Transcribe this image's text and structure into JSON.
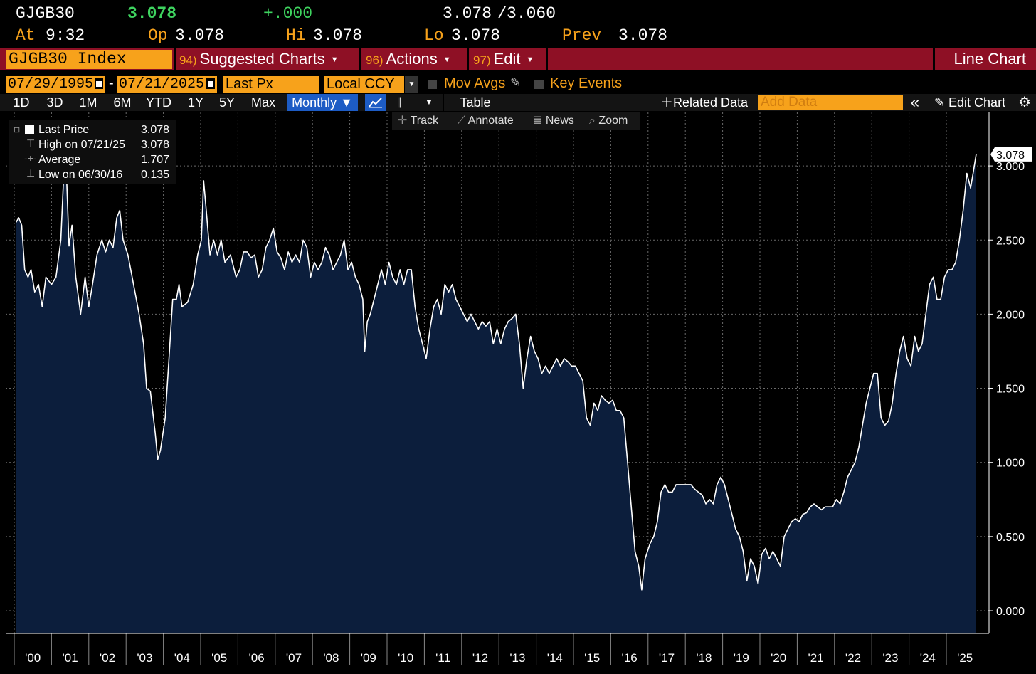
{
  "quote": {
    "ticker": "GJGB30",
    "last": "3.078",
    "change": "+.000",
    "bid": "3.078",
    "ask_sep": "/",
    "ask": "3.060",
    "at_label": "At",
    "at_time": "9:32",
    "open_label": "Op",
    "open": "3.078",
    "high_label": "Hi",
    "high": "3.078",
    "low_label": "Lo",
    "low": "3.078",
    "prev_label": "Prev",
    "prev": "3.078"
  },
  "menu_bar": {
    "security": "GJGB30 Index",
    "suggested": {
      "num": "94)",
      "label": "Suggested Charts"
    },
    "actions": {
      "num": "96)",
      "label": "Actions"
    },
    "edit": {
      "num": "97)",
      "label": "Edit"
    },
    "chart_type": "Line Chart"
  },
  "settings": {
    "start_date": "07/29/1995",
    "date_sep": "-",
    "end_date": "07/21/2025",
    "field": "Last Px",
    "currency": "Local CCY",
    "mov_avgs": "Mov Avgs",
    "key_events": "Key Events"
  },
  "toolbar": {
    "ranges": [
      "1D",
      "3D",
      "1M",
      "6M",
      "YTD",
      "1Y",
      "5Y",
      "Max"
    ],
    "frequency": "Monthly",
    "table": "Table",
    "related": "Related Data",
    "add_data_placeholder": "Add Data",
    "edit_chart": "Edit Chart"
  },
  "subtoolbar": {
    "track": "Track",
    "annotate": "Annotate",
    "news": "News",
    "zoom": "Zoom"
  },
  "legend": {
    "last_label": "Last Price",
    "last_value": "3.078",
    "high_label": "High on 07/21/25",
    "high_value": "3.078",
    "avg_label": "Average",
    "avg_value": "1.707",
    "low_label": "Low on 06/30/16",
    "low_value": "0.135"
  },
  "colors": {
    "accent_orange": "#f7a21b",
    "header_red": "#8e1025",
    "area_fill": "#0c1e3c",
    "line": "#ffffff",
    "active_blue": "#1d5cc5"
  },
  "chart_data": {
    "type": "area",
    "series": [
      {
        "name": "Last Price"
      }
    ],
    "last_label": "3.078",
    "ylim": [
      -0.15,
      3.3
    ],
    "y_ticks": [
      "0.000",
      "0.500",
      "1.000",
      "1.500",
      "2.000",
      "2.500",
      "3.000"
    ],
    "x_ticks": [
      "'00",
      "'01",
      "'02",
      "'03",
      "'04",
      "'05",
      "'06",
      "'07",
      "'08",
      "'09",
      "'10",
      "'11",
      "'12",
      "'13",
      "'14",
      "'15",
      "'16",
      "'17",
      "'18",
      "'19",
      "'20",
      "'21",
      "'22",
      "'23",
      "'24",
      "'25"
    ],
    "grid": true,
    "points": [
      [
        1999.55,
        2.62
      ],
      [
        1999.62,
        2.65
      ],
      [
        1999.7,
        2.6
      ],
      [
        1999.78,
        2.3
      ],
      [
        1999.87,
        2.25
      ],
      [
        1999.95,
        2.3
      ],
      [
        2000.05,
        2.15
      ],
      [
        2000.15,
        2.2
      ],
      [
        2000.25,
        2.05
      ],
      [
        2000.35,
        2.25
      ],
      [
        2000.5,
        2.2
      ],
      [
        2000.62,
        2.25
      ],
      [
        2000.75,
        2.5
      ],
      [
        2000.82,
        2.9
      ],
      [
        2000.9,
        2.95
      ],
      [
        2000.97,
        2.46
      ],
      [
        2001.05,
        2.6
      ],
      [
        2001.15,
        2.25
      ],
      [
        2001.28,
        2.0
      ],
      [
        2001.4,
        2.25
      ],
      [
        2001.5,
        2.05
      ],
      [
        2001.6,
        2.2
      ],
      [
        2001.72,
        2.4
      ],
      [
        2001.85,
        2.5
      ],
      [
        2001.95,
        2.42
      ],
      [
        2002.05,
        2.5
      ],
      [
        2002.15,
        2.45
      ],
      [
        2002.25,
        2.65
      ],
      [
        2002.33,
        2.7
      ],
      [
        2002.42,
        2.5
      ],
      [
        2002.55,
        2.4
      ],
      [
        2002.7,
        2.2
      ],
      [
        2002.85,
        2.0
      ],
      [
        2002.97,
        1.8
      ],
      [
        2003.05,
        1.5
      ],
      [
        2003.15,
        1.48
      ],
      [
        2003.28,
        1.2
      ],
      [
        2003.35,
        1.02
      ],
      [
        2003.42,
        1.08
      ],
      [
        2003.55,
        1.3
      ],
      [
        2003.65,
        1.7
      ],
      [
        2003.75,
        2.1
      ],
      [
        2003.85,
        2.1
      ],
      [
        2003.92,
        2.2
      ],
      [
        2004.0,
        2.05
      ],
      [
        2004.15,
        2.08
      ],
      [
        2004.3,
        2.2
      ],
      [
        2004.42,
        2.4
      ],
      [
        2004.52,
        2.5
      ],
      [
        2004.58,
        2.9
      ],
      [
        2004.65,
        2.7
      ],
      [
        2004.75,
        2.4
      ],
      [
        2004.85,
        2.5
      ],
      [
        2004.95,
        2.4
      ],
      [
        2005.05,
        2.5
      ],
      [
        2005.15,
        2.35
      ],
      [
        2005.3,
        2.4
      ],
      [
        2005.45,
        2.25
      ],
      [
        2005.55,
        2.3
      ],
      [
        2005.65,
        2.42
      ],
      [
        2005.75,
        2.42
      ],
      [
        2005.85,
        2.38
      ],
      [
        2005.95,
        2.4
      ],
      [
        2006.05,
        2.25
      ],
      [
        2006.15,
        2.3
      ],
      [
        2006.25,
        2.45
      ],
      [
        2006.35,
        2.5
      ],
      [
        2006.45,
        2.58
      ],
      [
        2006.55,
        2.42
      ],
      [
        2006.65,
        2.38
      ],
      [
        2006.75,
        2.3
      ],
      [
        2006.85,
        2.42
      ],
      [
        2006.95,
        2.35
      ],
      [
        2007.05,
        2.4
      ],
      [
        2007.15,
        2.35
      ],
      [
        2007.25,
        2.5
      ],
      [
        2007.35,
        2.45
      ],
      [
        2007.45,
        2.25
      ],
      [
        2007.55,
        2.35
      ],
      [
        2007.65,
        2.3
      ],
      [
        2007.75,
        2.35
      ],
      [
        2007.85,
        2.45
      ],
      [
        2007.95,
        2.4
      ],
      [
        2008.05,
        2.3
      ],
      [
        2008.15,
        2.35
      ],
      [
        2008.25,
        2.4
      ],
      [
        2008.35,
        2.5
      ],
      [
        2008.45,
        2.3
      ],
      [
        2008.55,
        2.35
      ],
      [
        2008.65,
        2.25
      ],
      [
        2008.75,
        2.2
      ],
      [
        2008.85,
        2.1
      ],
      [
        2008.9,
        1.75
      ],
      [
        2008.97,
        1.95
      ],
      [
        2009.05,
        2.0
      ],
      [
        2009.15,
        2.1
      ],
      [
        2009.25,
        2.2
      ],
      [
        2009.35,
        2.3
      ],
      [
        2009.45,
        2.2
      ],
      [
        2009.55,
        2.35
      ],
      [
        2009.65,
        2.25
      ],
      [
        2009.75,
        2.2
      ],
      [
        2009.85,
        2.3
      ],
      [
        2009.95,
        2.2
      ],
      [
        2010.05,
        2.3
      ],
      [
        2010.15,
        2.3
      ],
      [
        2010.25,
        2.05
      ],
      [
        2010.35,
        1.9
      ],
      [
        2010.45,
        1.8
      ],
      [
        2010.55,
        1.7
      ],
      [
        2010.65,
        1.9
      ],
      [
        2010.75,
        2.05
      ],
      [
        2010.85,
        2.1
      ],
      [
        2010.95,
        2.0
      ],
      [
        2011.05,
        2.2
      ],
      [
        2011.15,
        2.15
      ],
      [
        2011.25,
        2.2
      ],
      [
        2011.35,
        2.1
      ],
      [
        2011.45,
        2.05
      ],
      [
        2011.55,
        2.0
      ],
      [
        2011.65,
        1.95
      ],
      [
        2011.75,
        2.0
      ],
      [
        2011.85,
        1.95
      ],
      [
        2011.95,
        1.9
      ],
      [
        2012.05,
        1.95
      ],
      [
        2012.15,
        1.92
      ],
      [
        2012.25,
        1.95
      ],
      [
        2012.35,
        1.8
      ],
      [
        2012.45,
        1.9
      ],
      [
        2012.55,
        1.8
      ],
      [
        2012.65,
        1.9
      ],
      [
        2012.75,
        1.95
      ],
      [
        2012.85,
        1.97
      ],
      [
        2012.95,
        2.0
      ],
      [
        2013.05,
        1.8
      ],
      [
        2013.15,
        1.5
      ],
      [
        2013.25,
        1.7
      ],
      [
        2013.35,
        1.85
      ],
      [
        2013.45,
        1.75
      ],
      [
        2013.55,
        1.7
      ],
      [
        2013.65,
        1.6
      ],
      [
        2013.75,
        1.65
      ],
      [
        2013.85,
        1.6
      ],
      [
        2013.95,
        1.65
      ],
      [
        2014.05,
        1.7
      ],
      [
        2014.15,
        1.65
      ],
      [
        2014.25,
        1.7
      ],
      [
        2014.35,
        1.68
      ],
      [
        2014.45,
        1.65
      ],
      [
        2014.55,
        1.65
      ],
      [
        2014.65,
        1.6
      ],
      [
        2014.75,
        1.55
      ],
      [
        2014.85,
        1.3
      ],
      [
        2014.95,
        1.25
      ],
      [
        2015.05,
        1.4
      ],
      [
        2015.15,
        1.35
      ],
      [
        2015.25,
        1.45
      ],
      [
        2015.35,
        1.42
      ],
      [
        2015.45,
        1.4
      ],
      [
        2015.55,
        1.42
      ],
      [
        2015.65,
        1.35
      ],
      [
        2015.75,
        1.35
      ],
      [
        2015.85,
        1.3
      ],
      [
        2015.95,
        1.0
      ],
      [
        2016.05,
        0.7
      ],
      [
        2016.15,
        0.4
      ],
      [
        2016.25,
        0.3
      ],
      [
        2016.33,
        0.14
      ],
      [
        2016.42,
        0.35
      ],
      [
        2016.55,
        0.45
      ],
      [
        2016.65,
        0.5
      ],
      [
        2016.75,
        0.6
      ],
      [
        2016.85,
        0.8
      ],
      [
        2016.95,
        0.85
      ],
      [
        2017.05,
        0.8
      ],
      [
        2017.15,
        0.8
      ],
      [
        2017.25,
        0.85
      ],
      [
        2017.35,
        0.85
      ],
      [
        2017.45,
        0.85
      ],
      [
        2017.55,
        0.85
      ],
      [
        2017.65,
        0.85
      ],
      [
        2017.75,
        0.82
      ],
      [
        2017.85,
        0.8
      ],
      [
        2017.95,
        0.78
      ],
      [
        2018.05,
        0.72
      ],
      [
        2018.15,
        0.75
      ],
      [
        2018.25,
        0.72
      ],
      [
        2018.35,
        0.85
      ],
      [
        2018.45,
        0.9
      ],
      [
        2018.55,
        0.85
      ],
      [
        2018.65,
        0.75
      ],
      [
        2018.75,
        0.65
      ],
      [
        2018.85,
        0.55
      ],
      [
        2018.95,
        0.5
      ],
      [
        2019.05,
        0.4
      ],
      [
        2019.15,
        0.2
      ],
      [
        2019.25,
        0.35
      ],
      [
        2019.35,
        0.3
      ],
      [
        2019.45,
        0.18
      ],
      [
        2019.55,
        0.38
      ],
      [
        2019.65,
        0.42
      ],
      [
        2019.75,
        0.35
      ],
      [
        2019.85,
        0.4
      ],
      [
        2019.95,
        0.35
      ],
      [
        2020.05,
        0.3
      ],
      [
        2020.15,
        0.5
      ],
      [
        2020.25,
        0.55
      ],
      [
        2020.35,
        0.6
      ],
      [
        2020.45,
        0.62
      ],
      [
        2020.55,
        0.6
      ],
      [
        2020.65,
        0.65
      ],
      [
        2020.75,
        0.66
      ],
      [
        2020.85,
        0.7
      ],
      [
        2020.95,
        0.72
      ],
      [
        2021.05,
        0.7
      ],
      [
        2021.15,
        0.68
      ],
      [
        2021.25,
        0.7
      ],
      [
        2021.35,
        0.7
      ],
      [
        2021.45,
        0.7
      ],
      [
        2021.55,
        0.75
      ],
      [
        2021.65,
        0.72
      ],
      [
        2021.75,
        0.8
      ],
      [
        2021.85,
        0.9
      ],
      [
        2021.95,
        0.95
      ],
      [
        2022.05,
        1.0
      ],
      [
        2022.15,
        1.1
      ],
      [
        2022.25,
        1.25
      ],
      [
        2022.35,
        1.4
      ],
      [
        2022.45,
        1.5
      ],
      [
        2022.55,
        1.6
      ],
      [
        2022.65,
        1.6
      ],
      [
        2022.75,
        1.3
      ],
      [
        2022.85,
        1.25
      ],
      [
        2022.95,
        1.28
      ],
      [
        2023.05,
        1.4
      ],
      [
        2023.15,
        1.6
      ],
      [
        2023.25,
        1.75
      ],
      [
        2023.35,
        1.85
      ],
      [
        2023.45,
        1.7
      ],
      [
        2023.55,
        1.65
      ],
      [
        2023.65,
        1.85
      ],
      [
        2023.75,
        1.75
      ],
      [
        2023.85,
        1.8
      ],
      [
        2023.95,
        2.0
      ],
      [
        2024.05,
        2.2
      ],
      [
        2024.15,
        2.25
      ],
      [
        2024.25,
        2.1
      ],
      [
        2024.35,
        2.1
      ],
      [
        2024.45,
        2.25
      ],
      [
        2024.55,
        2.3
      ],
      [
        2024.65,
        2.3
      ],
      [
        2024.75,
        2.35
      ],
      [
        2024.85,
        2.5
      ],
      [
        2024.95,
        2.7
      ],
      [
        2025.05,
        2.95
      ],
      [
        2025.15,
        2.85
      ],
      [
        2025.25,
        3.0
      ],
      [
        2025.3,
        3.078
      ]
    ]
  }
}
